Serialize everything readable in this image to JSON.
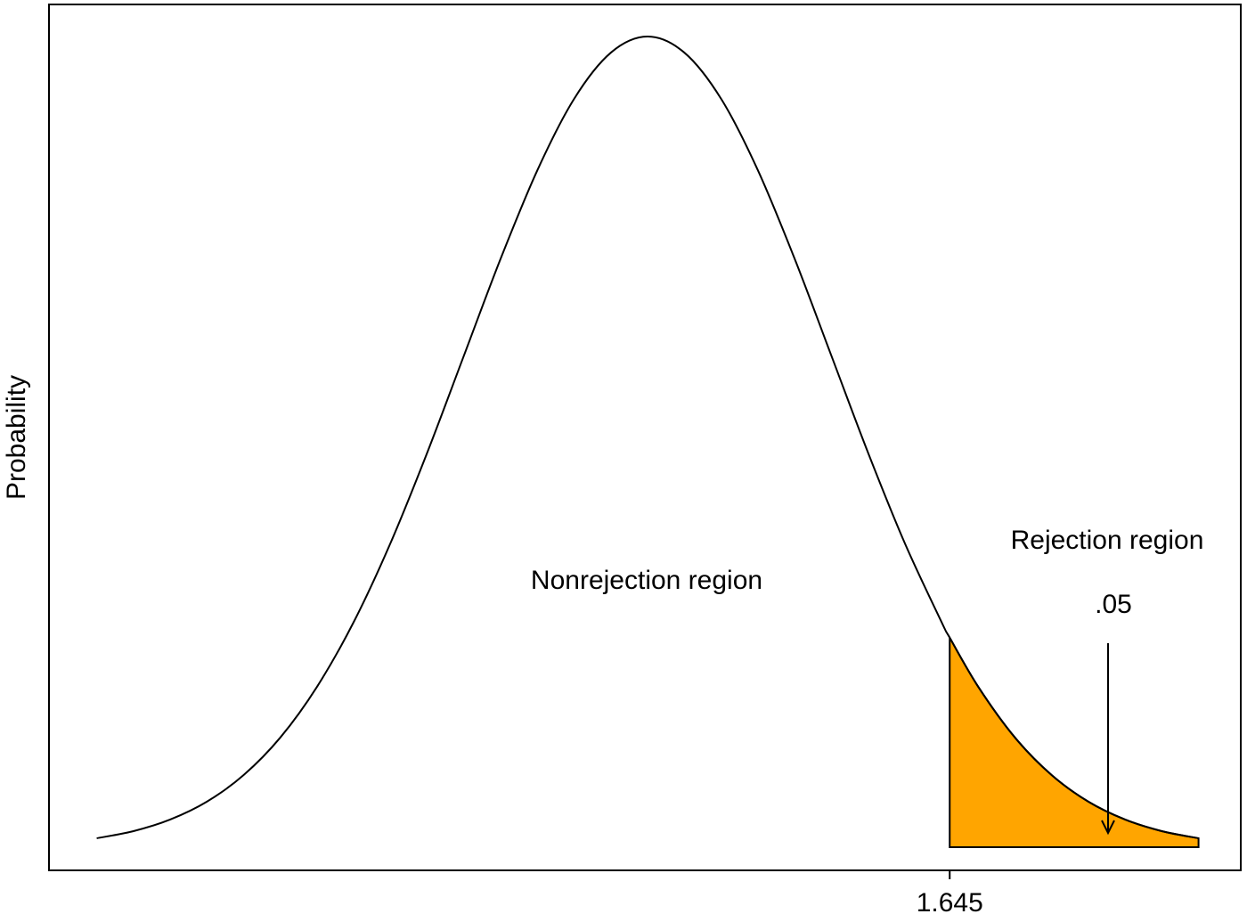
{
  "chart_data": {
    "type": "density",
    "y_label": "Probability",
    "x": [
      -3.0,
      -2.8,
      -2.6,
      -2.4,
      -2.2,
      -2.0,
      -1.8,
      -1.6,
      -1.4,
      -1.2,
      -1.0,
      -0.8,
      -0.6,
      -0.4,
      -0.2,
      0.0,
      0.2,
      0.4,
      0.6,
      0.8,
      1.0,
      1.2,
      1.4,
      1.6,
      1.645,
      1.8,
      2.0,
      2.2,
      2.4,
      2.6,
      2.8,
      3.0
    ],
    "values": [
      0.0044,
      0.0079,
      0.0136,
      0.0224,
      0.0355,
      0.054,
      0.079,
      0.1109,
      0.1497,
      0.1942,
      0.242,
      0.2897,
      0.3332,
      0.3683,
      0.391,
      0.3989,
      0.391,
      0.3683,
      0.3332,
      0.2897,
      0.242,
      0.1942,
      0.1497,
      0.1109,
      0.1031,
      0.079,
      0.054,
      0.0355,
      0.0224,
      0.0136,
      0.0079,
      0.0044
    ],
    "color": "#000000",
    "xlim": [
      -3.26,
      3.23
    ],
    "ylim": [
      -0.0114,
      0.4147
    ],
    "xticks": [
      1.645
    ],
    "shade_color": "#FFA500",
    "nonrejection_label": "Nonrejection region",
    "rejection_label": "Rejection region",
    "alpha": {
      "value": 0.05,
      "label": ".05"
    }
  }
}
